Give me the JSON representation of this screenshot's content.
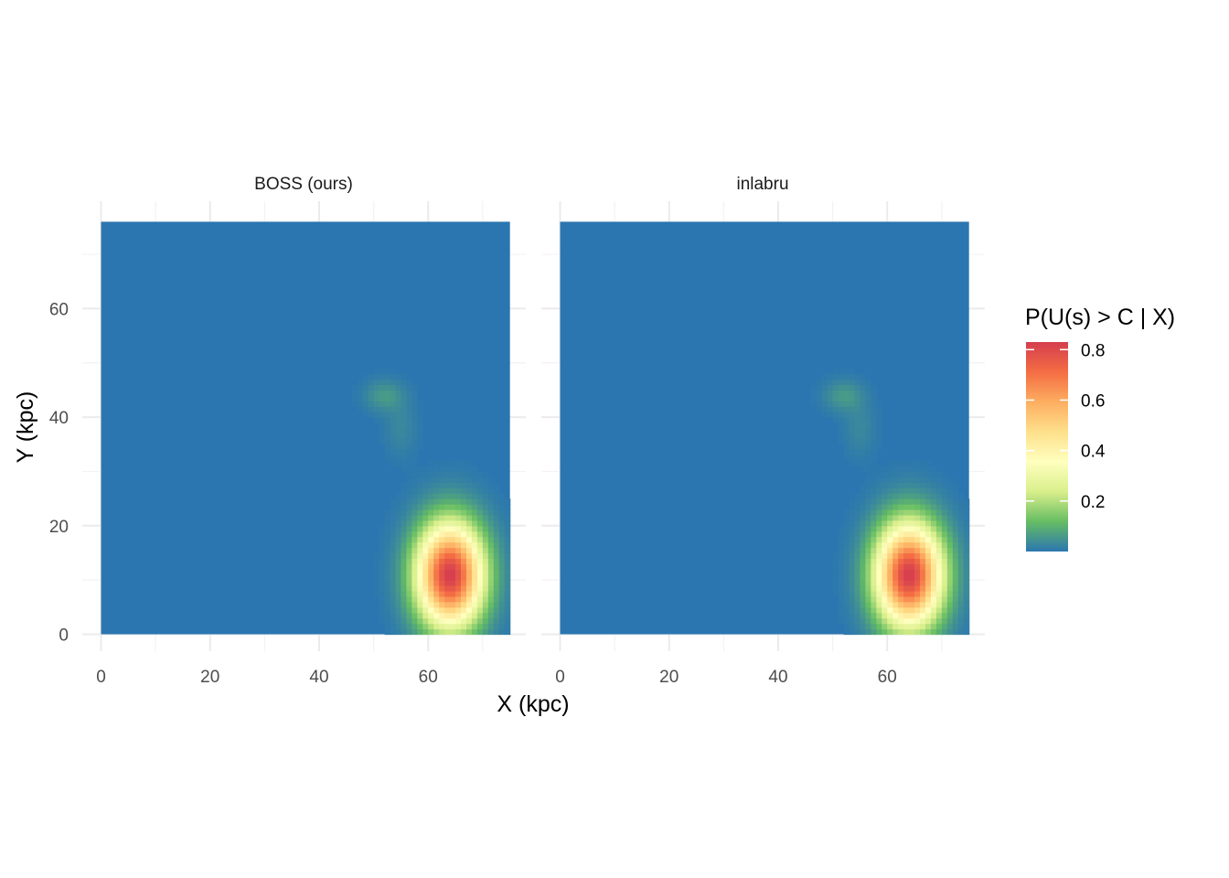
{
  "chart_data": {
    "type": "heatmap",
    "title": "",
    "xlabel": "X (kpc)",
    "ylabel": "Y (kpc)",
    "xlim": [
      0,
      75
    ],
    "ylim": [
      0,
      76
    ],
    "x_ticks": [
      0,
      20,
      40,
      60
    ],
    "y_ticks": [
      0,
      20,
      40,
      60
    ],
    "grid": true,
    "facets": [
      {
        "name": "BOSS (ours)"
      },
      {
        "name": "inlabru"
      }
    ],
    "legend": {
      "title": "P(U(s) > C | X)",
      "placement": "right",
      "range": [
        0,
        0.83
      ],
      "ticks": [
        0.2,
        0.4,
        0.6,
        0.8
      ],
      "tick_labels": [
        "0.2",
        "0.4",
        "0.6",
        "0.8"
      ],
      "palette": [
        "#2b76b0",
        "#66bd63",
        "#d9ef8b",
        "#ffffbf",
        "#fee08b",
        "#fdae61",
        "#f46d43",
        "#d53e4f"
      ]
    },
    "hotspots": [
      {
        "x": 64,
        "y": 11,
        "sx": 4.2,
        "sy": 6.5,
        "peak": 0.83
      },
      {
        "x": 52,
        "y": 44,
        "sx": 2.5,
        "sy": 2.0,
        "peak": 0.06
      },
      {
        "x": 55,
        "y": 38,
        "sx": 2.0,
        "sy": 3.5,
        "peak": 0.03
      }
    ]
  }
}
